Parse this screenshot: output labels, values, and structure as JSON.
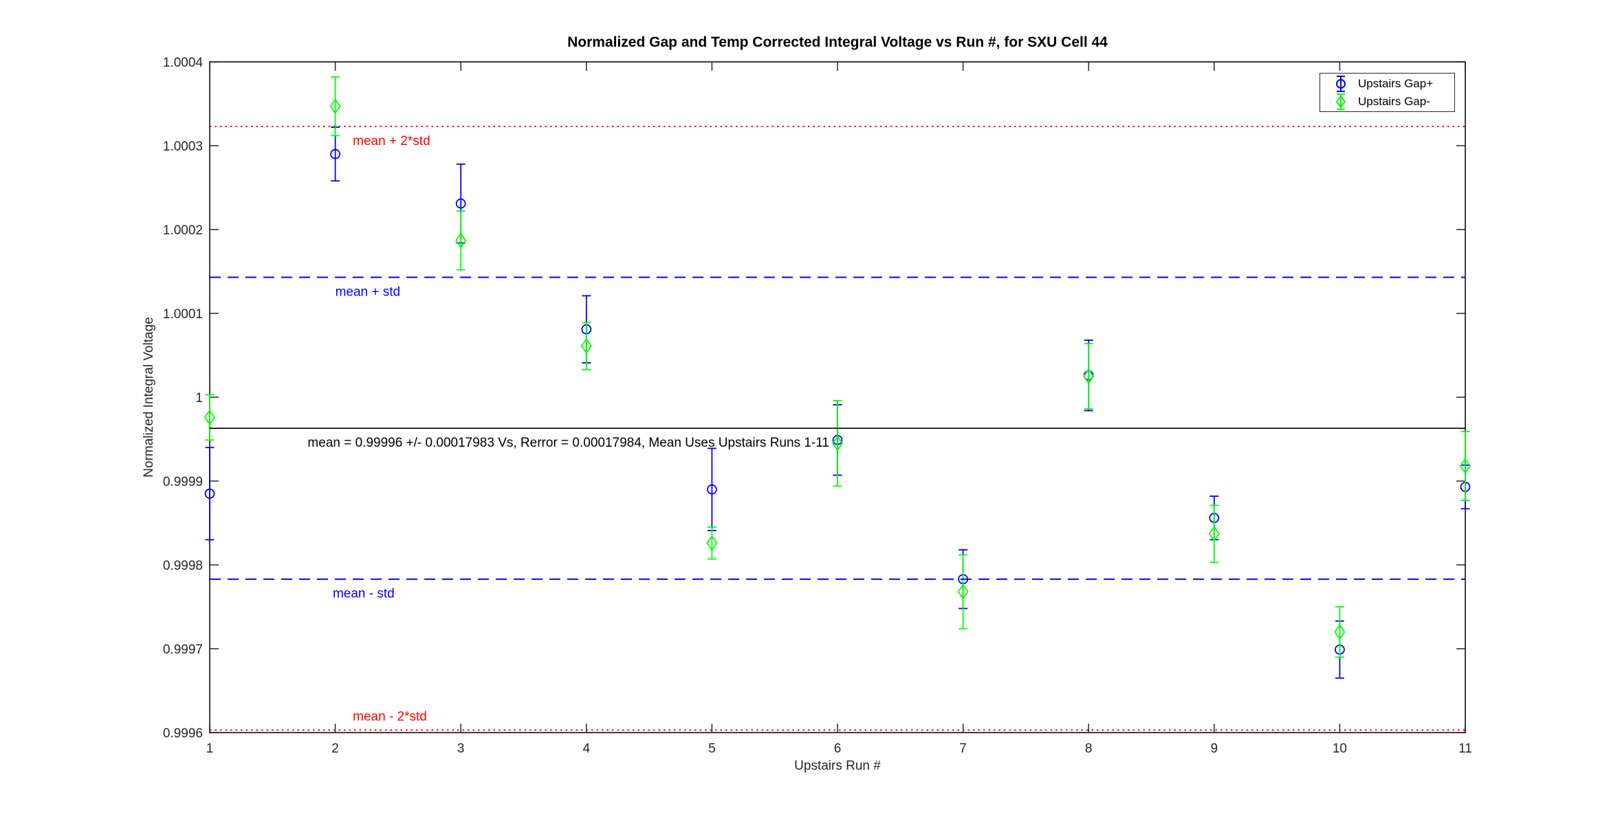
{
  "figure": {
    "background": "#ffffff",
    "axes_color": "#262626"
  },
  "chart_data": {
    "type": "scatter",
    "subtype": "errorbar",
    "title": "Normalized Gap and Temp Corrected Integral Voltage vs Run #, for SXU Cell 44",
    "xlabel": "Upstairs Run #",
    "ylabel": "Normalized Integral Voltage",
    "xlim": [
      1,
      11
    ],
    "ylim": [
      0.9996,
      1.0004
    ],
    "grid": false,
    "x_ticks": [
      1,
      2,
      3,
      4,
      5,
      6,
      7,
      8,
      9,
      10,
      11
    ],
    "x_tick_labels": [
      "1",
      "2",
      "3",
      "4",
      "5",
      "6",
      "7",
      "8",
      "9",
      "10",
      "11"
    ],
    "y_ticks": [
      0.9996,
      0.9997,
      0.9998,
      0.9999,
      1.0,
      1.0001,
      1.0002,
      1.0003,
      1.0004
    ],
    "y_tick_labels": [
      "0.9996",
      "0.9997",
      "0.9998",
      "0.9999",
      "1",
      "1.0001",
      "1.0002",
      "1.0003",
      "1.0004"
    ],
    "x": [
      1,
      2,
      3,
      4,
      5,
      6,
      7,
      8,
      9,
      10,
      11
    ],
    "series": [
      {
        "name": "Upstairs Gap+",
        "marker": "circle",
        "color": "#0000ff",
        "values": [
          0.999885,
          1.00029,
          1.000231,
          1.000081,
          0.99989,
          0.999949,
          0.999783,
          1.000026,
          0.999856,
          0.999699,
          0.999893
        ],
        "errors": [
          5.5e-05,
          3.2e-05,
          4.7e-05,
          4e-05,
          4.9e-05,
          4.2e-05,
          3.5e-05,
          4.2e-05,
          2.6e-05,
          3.4e-05,
          2.6e-05
        ]
      },
      {
        "name": "Upstairs Gap-",
        "marker": "diamond",
        "color": "#00ff00",
        "values": [
          0.999976,
          1.000347,
          1.000187,
          1.000061,
          0.999826,
          0.999945,
          0.999768,
          1.000025,
          0.999837,
          0.99972,
          0.999918
        ],
        "errors": [
          2.7e-05,
          3.5e-05,
          3.5e-05,
          2.8e-05,
          1.9e-05,
          5.1e-05,
          4.4e-05,
          3.9e-05,
          3.4e-05,
          3e-05,
          4.1e-05
        ]
      }
    ],
    "ref_lines": [
      {
        "name": "mean-plus-2std",
        "label": "mean + 2*std",
        "value": 1.000323,
        "color": "#ff0000",
        "style": "dotted",
        "label_x": 2.14,
        "label_above": false
      },
      {
        "name": "mean-plus-std",
        "label": "mean + std",
        "value": 1.000143,
        "color": "#0000ff",
        "style": "dashed",
        "label_x": 2.0,
        "label_above": false
      },
      {
        "name": "mean",
        "label": "mean = 0.99996 +/- 0.00017983 Vs, Rerror = 0.00017984, Mean Uses Upstairs Runs 1-11",
        "value": 0.999963,
        "color": "#000000",
        "style": "solid",
        "label_x": 1.78,
        "label_above": false
      },
      {
        "name": "mean-minus-std",
        "label": "mean - std",
        "value": 0.999783,
        "color": "#0000ff",
        "style": "dashed",
        "label_x": 1.98,
        "label_above": false
      },
      {
        "name": "mean-minus-2std",
        "label": "mean - 2*std",
        "value": 0.999603,
        "color": "#ff0000",
        "style": "dotted",
        "label_x": 2.14,
        "label_above": true
      }
    ],
    "legend": {
      "position": "top-right",
      "items": [
        "Upstairs Gap+",
        "Upstairs Gap-"
      ]
    }
  }
}
